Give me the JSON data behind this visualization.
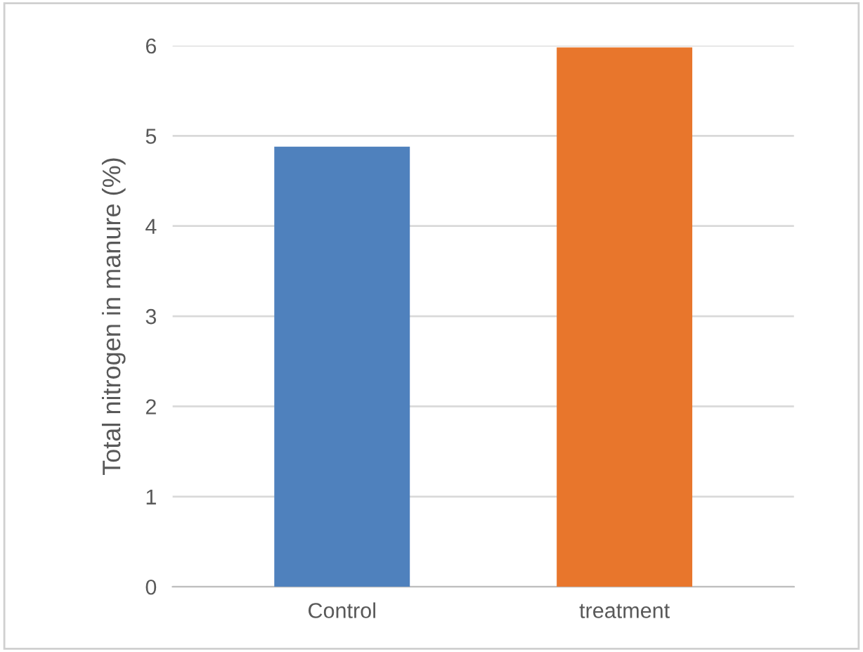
{
  "chart_data": {
    "type": "bar",
    "ylabel": "Total nitrogen in manure (%)",
    "categories": [
      "Control",
      "treatment"
    ],
    "values": [
      4.88,
      5.98
    ],
    "colors": [
      "#4f81bd",
      "#e8762c"
    ],
    "ylim": [
      0,
      6
    ],
    "yticks": [
      0,
      1,
      2,
      3,
      4,
      5,
      6
    ],
    "grid": "y"
  }
}
